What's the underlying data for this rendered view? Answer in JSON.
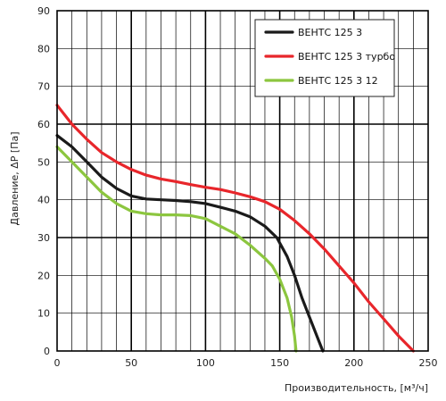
{
  "chart_data": {
    "type": "line",
    "xlabel": "Производительность, [м³/ч]",
    "ylabel": "Давление, ΔP [Па]",
    "xlim": [
      0,
      250
    ],
    "ylim": [
      0,
      90
    ],
    "xticks": [
      0,
      50,
      100,
      150,
      200,
      250
    ],
    "yticks": [
      0,
      10,
      20,
      30,
      40,
      50,
      60,
      70,
      80,
      90
    ],
    "grid": true,
    "legend_position": "top-right",
    "series": [
      {
        "name": "ВЕНТС 125 3",
        "color": "#1a1a1a",
        "points": [
          [
            0,
            57
          ],
          [
            10,
            54
          ],
          [
            20,
            50
          ],
          [
            30,
            46
          ],
          [
            40,
            43
          ],
          [
            50,
            41
          ],
          [
            60,
            40.2
          ],
          [
            70,
            40
          ],
          [
            80,
            39.8
          ],
          [
            90,
            39.5
          ],
          [
            100,
            39
          ],
          [
            110,
            38
          ],
          [
            120,
            37
          ],
          [
            130,
            35.5
          ],
          [
            140,
            33
          ],
          [
            148,
            30
          ],
          [
            155,
            25
          ],
          [
            160,
            20
          ],
          [
            165,
            14
          ],
          [
            170,
            9
          ],
          [
            175,
            4
          ],
          [
            179,
            0
          ]
        ]
      },
      {
        "name": "ВЕНТС 125 3 турбо",
        "color": "#e8262b",
        "points": [
          [
            0,
            65
          ],
          [
            10,
            60
          ],
          [
            20,
            56
          ],
          [
            30,
            52.5
          ],
          [
            40,
            50
          ],
          [
            50,
            48
          ],
          [
            60,
            46.5
          ],
          [
            70,
            45.5
          ],
          [
            80,
            44.8
          ],
          [
            90,
            44
          ],
          [
            100,
            43.3
          ],
          [
            110,
            42.7
          ],
          [
            120,
            41.8
          ],
          [
            130,
            40.8
          ],
          [
            140,
            39.5
          ],
          [
            150,
            37.5
          ],
          [
            160,
            34.5
          ],
          [
            170,
            31
          ],
          [
            180,
            27
          ],
          [
            190,
            22.5
          ],
          [
            200,
            18
          ],
          [
            210,
            13
          ],
          [
            220,
            8.5
          ],
          [
            230,
            4
          ],
          [
            240,
            0
          ]
        ]
      },
      {
        "name": "ВЕНТС 125 3 12",
        "color": "#8cc63f",
        "points": [
          [
            0,
            54
          ],
          [
            10,
            50
          ],
          [
            20,
            46
          ],
          [
            30,
            42
          ],
          [
            40,
            39
          ],
          [
            50,
            37
          ],
          [
            60,
            36.3
          ],
          [
            70,
            36
          ],
          [
            80,
            36
          ],
          [
            90,
            35.8
          ],
          [
            100,
            35
          ],
          [
            110,
            33
          ],
          [
            120,
            31
          ],
          [
            130,
            28
          ],
          [
            140,
            24.5
          ],
          [
            145,
            22.5
          ],
          [
            150,
            19
          ],
          [
            155,
            14
          ],
          [
            158,
            9
          ],
          [
            160,
            4
          ],
          [
            161,
            0
          ]
        ]
      }
    ]
  }
}
